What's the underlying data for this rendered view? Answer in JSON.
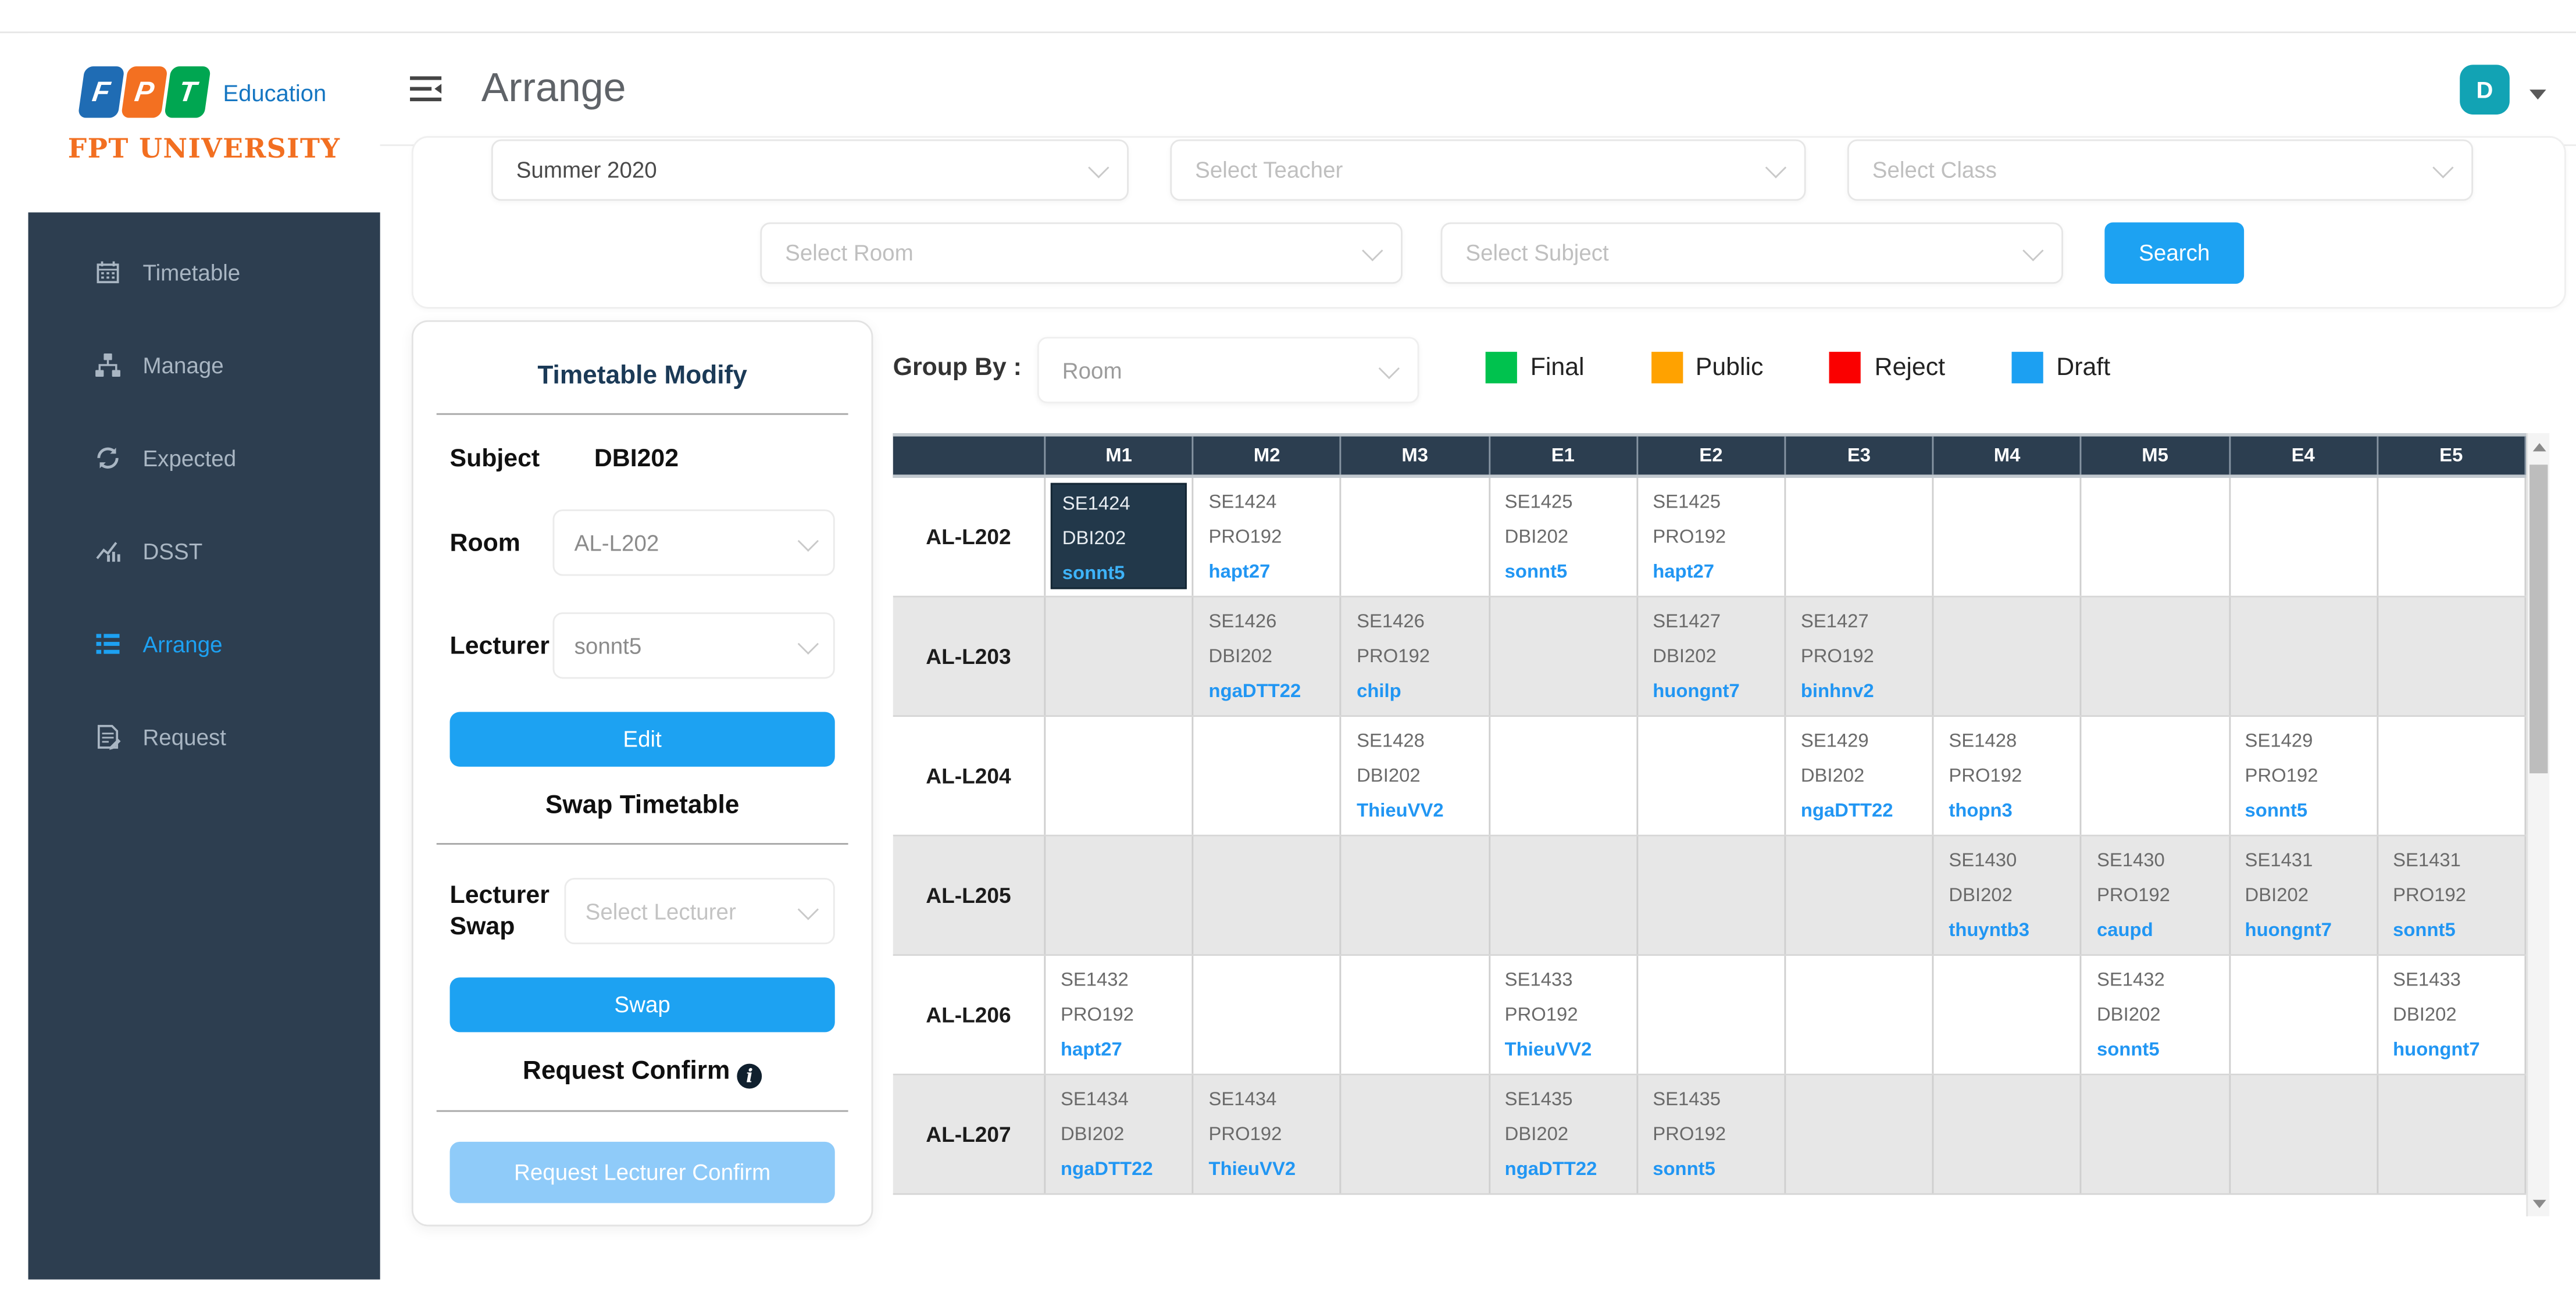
{
  "branding": {
    "logo_letters": [
      "F",
      "P",
      "T"
    ],
    "logo_suffix": "Education",
    "university_name": "FPT UNIVERSITY"
  },
  "header": {
    "title": "Arrange",
    "avatar_initial": "D"
  },
  "sidebar": {
    "items": [
      {
        "label": "Timetable",
        "icon": "calendar",
        "active": false
      },
      {
        "label": "Manage",
        "icon": "sitemap",
        "active": false
      },
      {
        "label": "Expected",
        "icon": "sync",
        "active": false
      },
      {
        "label": "DSST",
        "icon": "chart",
        "active": false
      },
      {
        "label": "Arrange",
        "icon": "list",
        "active": true
      },
      {
        "label": "Request",
        "icon": "file-edit",
        "active": false
      }
    ]
  },
  "filters": {
    "semester": {
      "value": "Summer 2020"
    },
    "teacher": {
      "placeholder": "Select Teacher"
    },
    "class": {
      "placeholder": "Select Class"
    },
    "room": {
      "placeholder": "Select Room"
    },
    "subject": {
      "placeholder": "Select Subject"
    },
    "search_label": "Search"
  },
  "modify_panel": {
    "title": "Timetable Modify",
    "subject_label": "Subject",
    "subject_value": "DBI202",
    "room_label": "Room",
    "room_value": "AL-L202",
    "lecturer_label": "Lecturer",
    "lecturer_value": "sonnt5",
    "edit_label": "Edit",
    "swap_section_title": "Swap Timetable",
    "lecturer_swap_label": "Lecturer Swap",
    "lecturer_swap_placeholder": "Select Lecturer",
    "swap_label": "Swap",
    "request_confirm_title": "Request Confirm",
    "request_button_label": "Request Lecturer Confirm"
  },
  "grid": {
    "group_by_label": "Group By :",
    "group_by_value": "Room",
    "legend": [
      {
        "label": "Final",
        "color": "#00c24e"
      },
      {
        "label": "Public",
        "color": "#ffa200"
      },
      {
        "label": "Reject",
        "color": "#fa0000"
      },
      {
        "label": "Draft",
        "color": "#1ca0f2"
      }
    ],
    "columns": [
      "M1",
      "M2",
      "M3",
      "E1",
      "E2",
      "E3",
      "M4",
      "M5",
      "E4",
      "E5"
    ],
    "rows": [
      {
        "room": "AL-L202",
        "cells": [
          {
            "class_code": "SE1424",
            "subject": "DBI202",
            "lecturer": "sonnt5",
            "selected": true
          },
          {
            "class_code": "SE1424",
            "subject": "PRO192",
            "lecturer": "hapt27"
          },
          null,
          {
            "class_code": "SE1425",
            "subject": "DBI202",
            "lecturer": "sonnt5"
          },
          {
            "class_code": "SE1425",
            "subject": "PRO192",
            "lecturer": "hapt27"
          },
          null,
          null,
          null,
          null,
          null
        ]
      },
      {
        "room": "AL-L203",
        "cells": [
          null,
          {
            "class_code": "SE1426",
            "subject": "DBI202",
            "lecturer": "ngaDTT22"
          },
          {
            "class_code": "SE1426",
            "subject": "PRO192",
            "lecturer": "chilp"
          },
          null,
          {
            "class_code": "SE1427",
            "subject": "DBI202",
            "lecturer": "huongnt7"
          },
          {
            "class_code": "SE1427",
            "subject": "PRO192",
            "lecturer": "binhnv2"
          },
          null,
          null,
          null,
          null
        ]
      },
      {
        "room": "AL-L204",
        "cells": [
          null,
          null,
          {
            "class_code": "SE1428",
            "subject": "DBI202",
            "lecturer": "ThieuVV2"
          },
          null,
          null,
          {
            "class_code": "SE1429",
            "subject": "DBI202",
            "lecturer": "ngaDTT22"
          },
          {
            "class_code": "SE1428",
            "subject": "PRO192",
            "lecturer": "thopn3"
          },
          null,
          {
            "class_code": "SE1429",
            "subject": "PRO192",
            "lecturer": "sonnt5"
          },
          null
        ]
      },
      {
        "room": "AL-L205",
        "cells": [
          null,
          null,
          null,
          null,
          null,
          null,
          {
            "class_code": "SE1430",
            "subject": "DBI202",
            "lecturer": "thuyntb3"
          },
          {
            "class_code": "SE1430",
            "subject": "PRO192",
            "lecturer": "caupd"
          },
          {
            "class_code": "SE1431",
            "subject": "DBI202",
            "lecturer": "huongnt7"
          },
          {
            "class_code": "SE1431",
            "subject": "PRO192",
            "lecturer": "sonnt5"
          }
        ]
      },
      {
        "room": "AL-L206",
        "cells": [
          {
            "class_code": "SE1432",
            "subject": "PRO192",
            "lecturer": "hapt27"
          },
          null,
          null,
          {
            "class_code": "SE1433",
            "subject": "PRO192",
            "lecturer": "ThieuVV2"
          },
          null,
          null,
          null,
          {
            "class_code": "SE1432",
            "subject": "DBI202",
            "lecturer": "sonnt5"
          },
          null,
          {
            "class_code": "SE1433",
            "subject": "DBI202",
            "lecturer": "huongnt7"
          }
        ]
      },
      {
        "room": "AL-L207",
        "cells": [
          {
            "class_code": "SE1434",
            "subject": "DBI202",
            "lecturer": "ngaDTT22"
          },
          {
            "class_code": "SE1434",
            "subject": "PRO192",
            "lecturer": "ThieuVV2"
          },
          null,
          {
            "class_code": "SE1435",
            "subject": "DBI202",
            "lecturer": "ngaDTT22"
          },
          {
            "class_code": "SE1435",
            "subject": "PRO192",
            "lecturer": "sonnt5"
          },
          null,
          null,
          null,
          null,
          null
        ]
      }
    ]
  },
  "colors": {
    "accent_blue": "#1da2f2",
    "link_blue": "#2196f3",
    "sidebar_navy": "#2d3e50",
    "header_navy": "#2c3e50",
    "selected_cell_navy": "#22384a",
    "avatar_teal": "#12a3b4",
    "brand_orange": "#f26f21",
    "disabled_button_blue": "#8fcbf9"
  }
}
